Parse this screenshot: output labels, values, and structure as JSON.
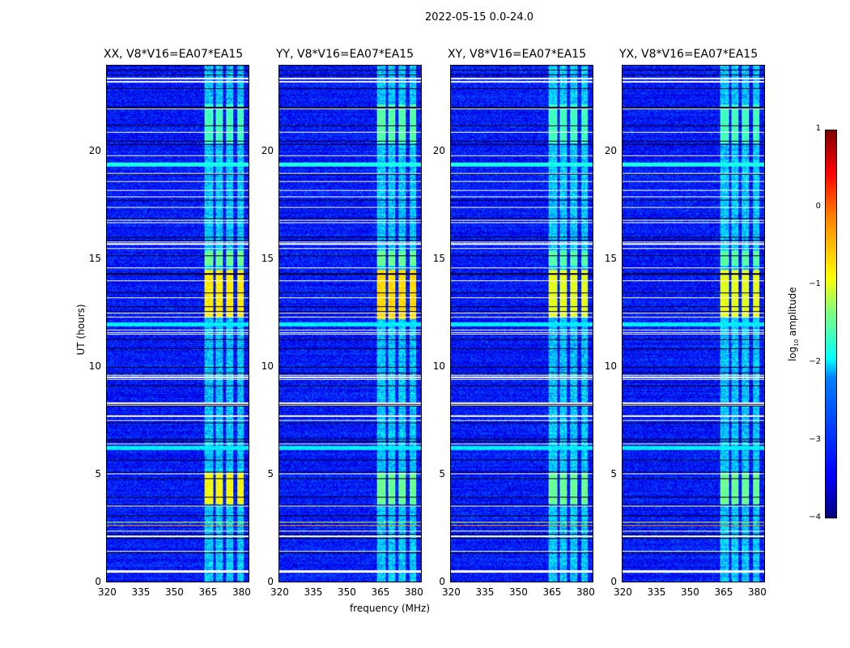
{
  "suptitle": "2022-05-15 0.0-24.0",
  "chart_data": {
    "type": "heatmap",
    "xlabel": "frequency (MHz)",
    "ylabel": "UT (hours)",
    "xlim": [
      320,
      384
    ],
    "ylim": [
      0,
      24
    ],
    "xticks": [
      "320",
      "335",
      "350",
      "365",
      "380"
    ],
    "xtick_values": [
      320,
      335,
      350,
      365,
      380
    ],
    "yticks": [
      "0",
      "5",
      "10",
      "15",
      "20"
    ],
    "ytick_values": [
      0,
      5,
      10,
      15,
      20
    ],
    "colorbar": {
      "label": "log10 amplitude",
      "label_main": "log",
      "label_sub": "10",
      "label_rest": " amplitude",
      "range": [
        -4,
        1
      ],
      "ticks": [
        "1",
        "0",
        "−1",
        "−2",
        "−3",
        "−4"
      ],
      "tick_values": [
        1,
        0,
        -1,
        -2,
        -3,
        -4
      ],
      "colormap": "jet"
    },
    "background_level": -3.3,
    "signal_channels_mhz": [
      [
        364,
        368
      ],
      [
        369,
        372.5
      ],
      [
        374,
        377
      ],
      [
        379,
        382
      ]
    ],
    "flagged_hours": [
      0.45,
      0.5,
      1.4,
      2.1,
      2.35,
      3.5,
      5.0,
      6.4,
      7.5,
      7.7,
      8.2,
      8.3,
      9.4,
      9.5,
      9.6,
      11.5,
      11.6,
      11.7,
      12.3,
      12.5,
      13.2,
      14.0,
      14.6,
      15.5,
      15.7,
      15.8,
      16.7,
      16.8,
      17.4,
      17.9,
      18.2,
      18.6,
      19.0,
      19.8,
      20.9,
      22.0,
      23.25,
      23.4
    ],
    "broadband_events": [
      {
        "hour": 2.6,
        "level": -0.3
      },
      {
        "hour": 2.75,
        "level": -1.0
      },
      {
        "hour": 19.4,
        "level": -2.0
      },
      {
        "hour": 11.95,
        "level": -2.2
      },
      {
        "hour": 6.2,
        "level": -2.2
      }
    ],
    "panels": [
      {
        "title": "XX, V8*V16=EA07*EA15",
        "bursts": [
          {
            "hours": [
              12.3,
              14.5
            ],
            "level": -0.8
          },
          {
            "hours": [
              14.7,
              15.4
            ],
            "level": -1.6
          },
          {
            "hours": [
              3.6,
              5.1
            ],
            "level": -0.9
          },
          {
            "hours": [
              20.4,
              22.2
            ],
            "level": -1.8
          }
        ]
      },
      {
        "title": "YY, V8*V16=EA07*EA15",
        "bursts": [
          {
            "hours": [
              12.2,
              14.5
            ],
            "level": -0.7
          },
          {
            "hours": [
              14.7,
              15.4
            ],
            "level": -1.6
          },
          {
            "hours": [
              3.6,
              5.1
            ],
            "level": -1.6
          },
          {
            "hours": [
              20.4,
              22.2
            ],
            "level": -1.7
          }
        ]
      },
      {
        "title": "XY, V8*V16=EA07*EA15",
        "bursts": [
          {
            "hours": [
              12.3,
              14.5
            ],
            "level": -1.0
          },
          {
            "hours": [
              14.7,
              15.4
            ],
            "level": -1.7
          },
          {
            "hours": [
              3.6,
              5.1
            ],
            "level": -1.6
          },
          {
            "hours": [
              20.4,
              22.2
            ],
            "level": -1.8
          }
        ]
      },
      {
        "title": "YX, V8*V16=EA07*EA15",
        "bursts": [
          {
            "hours": [
              12.3,
              14.5
            ],
            "level": -1.0
          },
          {
            "hours": [
              14.7,
              15.4
            ],
            "level": -1.7
          },
          {
            "hours": [
              3.6,
              5.1
            ],
            "level": -1.6
          },
          {
            "hours": [
              20.4,
              22.2
            ],
            "level": -1.8
          }
        ]
      }
    ]
  }
}
